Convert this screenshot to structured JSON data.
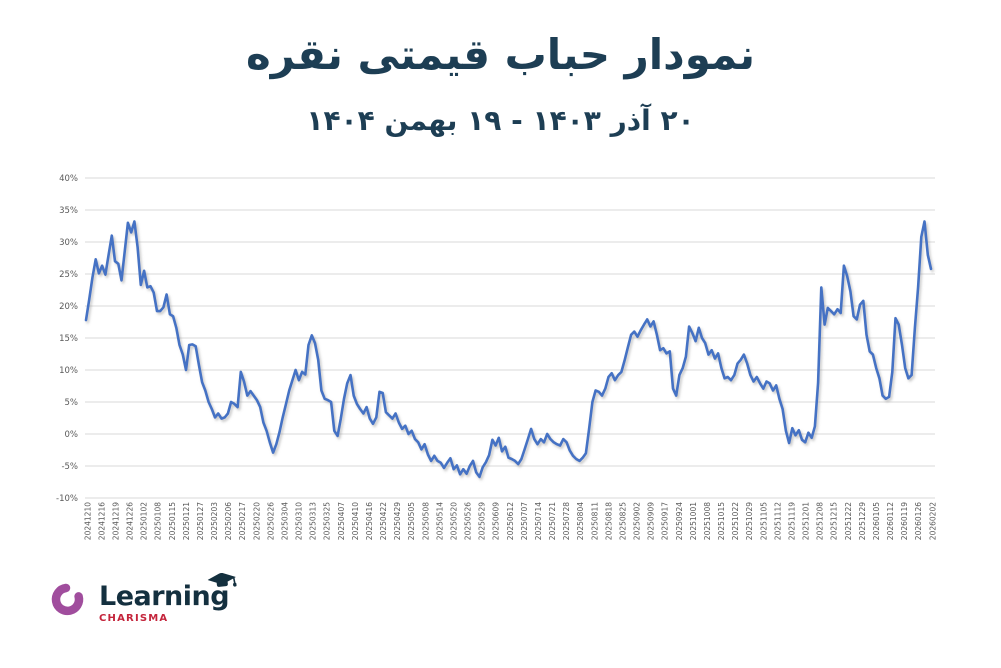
{
  "header": {
    "title": "نمودار حباب قیمتی نقره",
    "subtitle": "۲۰ آذر ۱۴۰۳ - ۱۹ بهمن ۱۴۰۴"
  },
  "logo": {
    "name": "Learning",
    "sub": "CHARISMA"
  },
  "colors": {
    "title_text": "#1d3e54",
    "line": "#4472C4",
    "grid": "#d9d9d9",
    "axis_text": "#595959",
    "logo_purple": "#a04d9d",
    "logo_navy": "#14303f",
    "logo_red": "#c4243b"
  },
  "chart_data": {
    "type": "line",
    "title": "نمودار حباب قیمتی نقره",
    "subtitle": "۲۰ آذر ۱۴۰۳ - ۱۹ بهمن ۱۴۰۴",
    "xlabel": "",
    "ylabel": "",
    "ylim": [
      -10,
      40
    ],
    "grid": "horizontal",
    "legend": "none",
    "y_ticks": [
      40,
      35,
      30,
      25,
      20,
      15,
      10,
      5,
      0,
      -5,
      -10
    ],
    "y_tick_labels": [
      "40%",
      "35%",
      "30%",
      "25%",
      "20%",
      "15%",
      "10%",
      "5%",
      "0%",
      "-5%",
      "-10%"
    ],
    "x_tick_labels": [
      "20241210",
      "20241216",
      "20241219",
      "20241226",
      "20250102",
      "20250108",
      "20250115",
      "20250121",
      "20250127",
      "20250203",
      "20250206",
      "20250217",
      "20250220",
      "20250226",
      "20250304",
      "20250310",
      "20250313",
      "20250325",
      "20250407",
      "20250410",
      "20250416",
      "20250422",
      "20250429",
      "20250505",
      "20250508",
      "20250514",
      "20250520",
      "20250526",
      "20250529",
      "20250609",
      "20250612",
      "20250707",
      "20250714",
      "20250721",
      "20250728",
      "20250804",
      "20250811",
      "20250818",
      "20250825",
      "20250902",
      "20250909",
      "20250917",
      "20250924",
      "20251001",
      "20251008",
      "20251015",
      "20251022",
      "20251029",
      "20251105",
      "20251112",
      "20251119",
      "20251201",
      "20251208",
      "20251215",
      "20251222",
      "20251229",
      "20260105",
      "20260112",
      "20260119",
      "20260126",
      "20260202"
    ],
    "series": [
      {
        "name": "bubble-percent",
        "unit": "%",
        "values": [
          17.8,
          21.0,
          24.5,
          27.3,
          25.1,
          26.3,
          24.9,
          28.0,
          31.0,
          27.0,
          26.6,
          24.0,
          28.5,
          33.0,
          31.5,
          33.2,
          29.2,
          23.3,
          25.5,
          22.9,
          23.1,
          22.1,
          19.2,
          19.2,
          19.8,
          21.8,
          18.7,
          18.4,
          16.6,
          13.9,
          12.4,
          10.0,
          13.9,
          14.0,
          13.7,
          10.8,
          8.1,
          6.8,
          5.0,
          3.9,
          2.6,
          3.2,
          2.4,
          2.6,
          3.2,
          5.0,
          4.7,
          4.2,
          9.7,
          8.2,
          6.0,
          6.7,
          6.0,
          5.3,
          4.2,
          1.8,
          0.5,
          -1.3,
          -2.9,
          -1.6,
          0.3,
          2.6,
          4.7,
          6.8,
          8.4,
          10.0,
          8.4,
          9.7,
          9.3,
          13.9,
          15.4,
          14.2,
          11.6,
          6.8,
          5.5,
          5.3,
          5.0,
          0.5,
          -0.3,
          2.4,
          5.5,
          7.9,
          9.2,
          6.0,
          4.7,
          3.9,
          3.2,
          4.2,
          2.4,
          1.6,
          2.6,
          6.6,
          6.4,
          3.4,
          2.9,
          2.4,
          3.2,
          1.8,
          0.8,
          1.3,
          0.0,
          0.5,
          -0.8,
          -1.3,
          -2.4,
          -1.6,
          -3.2,
          -4.2,
          -3.4,
          -4.2,
          -4.5,
          -5.3,
          -4.5,
          -3.8,
          -5.5,
          -4.9,
          -6.3,
          -5.5,
          -6.2,
          -5.0,
          -4.2,
          -6.0,
          -6.7,
          -5.2,
          -4.4,
          -3.3,
          -0.9,
          -1.8,
          -0.6,
          -2.7,
          -2.0,
          -3.7,
          -3.9,
          -4.2,
          -4.7,
          -3.9,
          -2.4,
          -0.8,
          0.8,
          -0.8,
          -1.6,
          -0.8,
          -1.3,
          0.0,
          -0.8,
          -1.3,
          -1.6,
          -1.8,
          -0.8,
          -1.3,
          -2.6,
          -3.4,
          -3.9,
          -4.2,
          -3.7,
          -3.0,
          0.8,
          5.0,
          6.8,
          6.6,
          6.0,
          7.1,
          8.9,
          9.5,
          8.4,
          9.2,
          9.7,
          11.5,
          13.5,
          15.5,
          16.0,
          15.2,
          16.2,
          17.1,
          17.9,
          16.8,
          17.6,
          15.5,
          13.1,
          13.4,
          12.6,
          12.9,
          7.1,
          6.0,
          9.2,
          10.3,
          12.1,
          16.8,
          15.8,
          14.5,
          16.6,
          15.0,
          14.2,
          12.4,
          13.1,
          11.8,
          12.6,
          10.3,
          8.7,
          8.9,
          8.4,
          9.2,
          11.0,
          11.6,
          12.4,
          11.0,
          9.2,
          8.2,
          8.9,
          7.9,
          7.1,
          8.2,
          7.9,
          6.8,
          7.6,
          5.5,
          3.9,
          0.5,
          -1.4,
          0.9,
          -0.2,
          0.6,
          -0.9,
          -1.3,
          0.2,
          -0.6,
          1.2,
          8.0,
          22.9,
          17.1,
          19.7,
          19.2,
          18.7,
          19.5,
          18.9,
          26.3,
          24.7,
          22.3,
          18.4,
          17.9,
          20.2,
          20.8,
          15.5,
          12.9,
          12.4,
          10.3,
          8.7,
          6.0,
          5.5,
          5.8,
          9.7,
          18.1,
          17.1,
          13.9,
          10.3,
          8.7,
          9.2,
          16.6,
          22.9,
          30.8,
          33.2,
          28.0,
          25.8
        ]
      }
    ]
  }
}
